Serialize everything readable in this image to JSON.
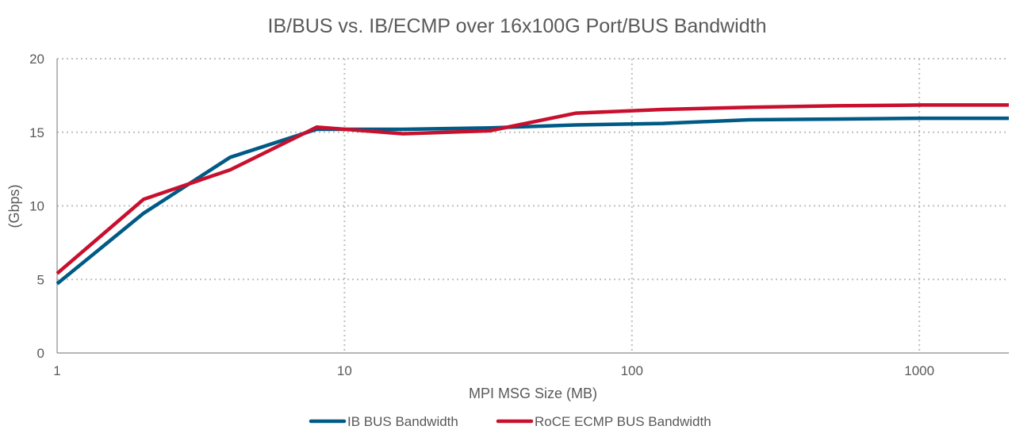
{
  "chart_data": {
    "type": "line",
    "title": "IB/BUS vs. IB/ECMP over 16x100G Port/BUS Bandwidth",
    "xlabel": "MPI MSG Size (MB)",
    "ylabel": "(Gbps)",
    "xscale": "log",
    "xlim": [
      1,
      2048
    ],
    "ylim": [
      0,
      20
    ],
    "x_ticks": [
      "1",
      "10",
      "100",
      "1000"
    ],
    "y_ticks": [
      "0",
      "5",
      "10",
      "15",
      "20"
    ],
    "grid": true,
    "legend_position": "bottom",
    "x": [
      1,
      2,
      4,
      8,
      16,
      32,
      64,
      128,
      256,
      512,
      1024,
      2048
    ],
    "series": [
      {
        "name": "IB BUS Bandwidth",
        "color": "#005A86",
        "values": [
          4.7,
          9.5,
          13.3,
          15.2,
          15.2,
          15.3,
          15.5,
          15.6,
          15.85,
          15.9,
          15.95,
          15.95
        ]
      },
      {
        "name": "RoCE ECMP BUS Bandwidth",
        "color": "#C8102E",
        "values": [
          5.4,
          10.45,
          12.45,
          15.35,
          14.9,
          15.1,
          16.3,
          16.55,
          16.7,
          16.8,
          16.85,
          16.85
        ]
      }
    ]
  }
}
